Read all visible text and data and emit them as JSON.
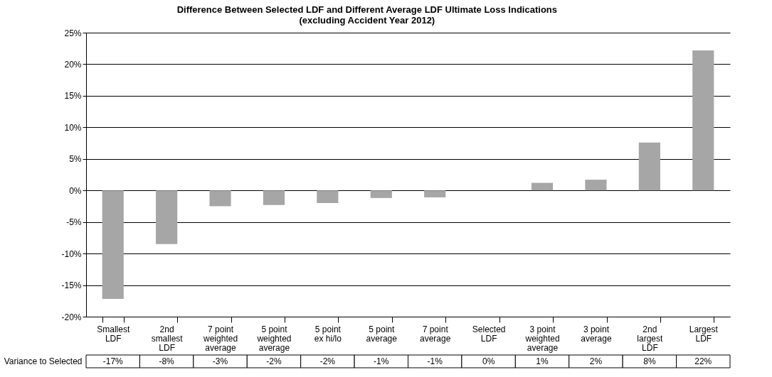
{
  "chart_data": {
    "type": "bar",
    "title": "Difference Between Selected LDF and Different Average LDF  Ultimate Loss Indications",
    "subtitle": "(excluding Accident Year 2012)",
    "categories": [
      "Smallest LDF",
      "2nd smallest LDF",
      "7 point weighted average",
      "5 point weighted average",
      "5 point ex hi/lo",
      "5 point average",
      "7 point average",
      "Selected LDF",
      "3 point weighted average",
      "3 point average",
      "2nd largest LDF",
      "Largest LDF"
    ],
    "series": [
      {
        "name": "Variance to Selected",
        "color": "#a6a6a6",
        "values": [
          -17.2,
          -8.5,
          -2.5,
          -2.3,
          -2.0,
          -1.2,
          -1.1,
          0,
          1.2,
          1.7,
          7.6,
          22.2
        ],
        "value_labels": [
          "-17%",
          "-8%",
          "-3%",
          "-2%",
          "-2%",
          "-1%",
          "-1%",
          "0%",
          "1%",
          "2%",
          "8%",
          "22%"
        ]
      }
    ],
    "ylim": [
      -20,
      25
    ],
    "yticks": [
      {
        "value": -20,
        "label": "-20%"
      },
      {
        "value": -15,
        "label": "-15%"
      },
      {
        "value": -10,
        "label": "-10%"
      },
      {
        "value": -5,
        "label": "-5%"
      },
      {
        "value": 0,
        "label": "0%"
      },
      {
        "value": 5,
        "label": "5%"
      },
      {
        "value": 10,
        "label": "10%"
      },
      {
        "value": 15,
        "label": "15%"
      },
      {
        "value": 20,
        "label": "20%"
      },
      {
        "value": 25,
        "label": "25%"
      }
    ],
    "grid": "y"
  }
}
